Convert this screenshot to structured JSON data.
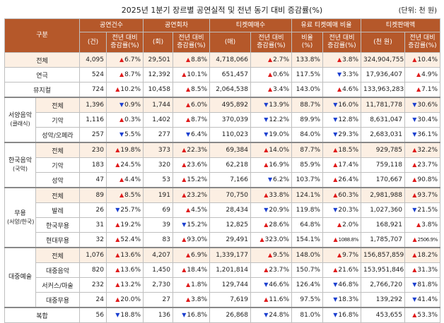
{
  "title": "2025년 1분기 장르별 공연실적 및 전년 동기 대비 증감률(%)",
  "unit": "(단위: 천 원)",
  "header": {
    "category": "구분",
    "groups": [
      "공연건수",
      "공연회차",
      "티켓예매수",
      "유료 티켓예매 비율",
      "티켓판매액"
    ],
    "subs": [
      "(건)",
      "전년 대비\n증감률(%)",
      "(회)",
      "전년 대비\n증감률(%)",
      "(매)",
      "전년 대비\n증감률(%)",
      "비율\n(%)",
      "전년 대비\n증감률(%)",
      "(천 원)",
      "전년 대비\n증감률(%)"
    ]
  },
  "groups": {
    "western": {
      "name": "서양음악",
      "sub": "(클래식)"
    },
    "korean": {
      "name": "한국음악",
      "sub": "(국악)"
    },
    "dance": {
      "name": "무용",
      "sub": "(서양/한국)"
    },
    "popular": {
      "name": "대중예술",
      "sub": ""
    }
  },
  "rows": [
    {
      "label": "전체",
      "v": [
        "4,095",
        "6.7%",
        "29,501",
        "8.8%",
        "4,718,066",
        "2.7%",
        "133.8%",
        "3.8%",
        "324,904,755",
        "10.4%"
      ],
      "d": [
        "up",
        "up",
        "up",
        "up",
        "up"
      ]
    },
    {
      "label": "연극",
      "v": [
        "524",
        "8.7%",
        "12,392",
        "10.1%",
        "651,457",
        "0.6%",
        "117.5%",
        "3.3%",
        "17,936,407",
        "4.9%"
      ],
      "d": [
        "up",
        "up",
        "up",
        "down",
        "up"
      ]
    },
    {
      "label": "뮤지컬",
      "v": [
        "724",
        "10.2%",
        "10,458",
        "8.5%",
        "2,064,538",
        "3.4%",
        "143.0%",
        "4.6%",
        "133,963,283",
        "7.1%"
      ],
      "d": [
        "up",
        "up",
        "up",
        "up",
        "up"
      ]
    },
    {
      "label": "전체",
      "v": [
        "1,396",
        "0.9%",
        "1,744",
        "6.0%",
        "495,892",
        "13.9%",
        "88.7%",
        "16.0%",
        "11,781,778",
        "30.6%"
      ],
      "d": [
        "down",
        "up",
        "down",
        "down",
        "down"
      ]
    },
    {
      "label": "기악",
      "v": [
        "1,116",
        "0.3%",
        "1,402",
        "8.7%",
        "370,039",
        "12.2%",
        "89.9%",
        "12.8%",
        "8,631,047",
        "30.4%"
      ],
      "d": [
        "up",
        "up",
        "down",
        "down",
        "down"
      ]
    },
    {
      "label": "성악/오페라",
      "v": [
        "257",
        "5.5%",
        "277",
        "6.4%",
        "110,023",
        "19.0%",
        "84.0%",
        "29.3%",
        "2,683,031",
        "36.1%"
      ],
      "d": [
        "down",
        "down",
        "down",
        "down",
        "down"
      ]
    },
    {
      "label": "전체",
      "v": [
        "230",
        "19.8%",
        "373",
        "22.3%",
        "69,384",
        "14.0%",
        "87.7%",
        "18.5%",
        "929,785",
        "32.2%"
      ],
      "d": [
        "up",
        "up",
        "up",
        "up",
        "up"
      ]
    },
    {
      "label": "기악",
      "v": [
        "183",
        "24.5%",
        "320",
        "23.6%",
        "62,218",
        "16.9%",
        "85.9%",
        "17.4%",
        "759,118",
        "23.7%"
      ],
      "d": [
        "up",
        "up",
        "up",
        "up",
        "up"
      ]
    },
    {
      "label": "성악",
      "v": [
        "47",
        "4.4%",
        "53",
        "15.2%",
        "7,166",
        "6.2%",
        "103.7%",
        "26.4%",
        "170,667",
        "90.8%"
      ],
      "d": [
        "up",
        "up",
        "down",
        "up",
        "up"
      ]
    },
    {
      "label": "전체",
      "v": [
        "89",
        "8.5%",
        "191",
        "23.2%",
        "70,750",
        "33.8%",
        "124.1%",
        "60.3%",
        "2,981,988",
        "93.7%"
      ],
      "d": [
        "up",
        "up",
        "up",
        "up",
        "up"
      ]
    },
    {
      "label": "발레",
      "v": [
        "26",
        "25.7%",
        "69",
        "4.5%",
        "28,434",
        "20.9%",
        "119.8%",
        "20.3%",
        "1,027,360",
        "21.5%"
      ],
      "d": [
        "down",
        "up",
        "down",
        "down",
        "down"
      ]
    },
    {
      "label": "한국무용",
      "v": [
        "31",
        "19.2%",
        "39",
        "15.2%",
        "12,825",
        "28.6%",
        "64.8%",
        "2.0%",
        "168,921",
        "3.8%"
      ],
      "d": [
        "up",
        "down",
        "up",
        "up",
        "up"
      ]
    },
    {
      "label": "현대무용",
      "v": [
        "32",
        "52.4%",
        "83",
        "93.0%",
        "29,491",
        "323.0%",
        "154.1%",
        "1088.8%",
        "1,785,707",
        "2506.9%"
      ],
      "d": [
        "up",
        "up",
        "up",
        "up",
        "up"
      ]
    },
    {
      "label": "전체",
      "v": [
        "1,076",
        "13.6%",
        "4,207",
        "6.9%",
        "1,339,177",
        "9.5%",
        "148.0%",
        "9.7%",
        "156,857,859",
        "18.2%"
      ],
      "d": [
        "up",
        "up",
        "up",
        "up",
        "up"
      ]
    },
    {
      "label": "대중음악",
      "v": [
        "820",
        "13.6%",
        "1,450",
        "18.4%",
        "1,201,814",
        "23.7%",
        "150.7%",
        "21.6%",
        "153,951,846",
        "31.3%"
      ],
      "d": [
        "up",
        "up",
        "up",
        "up",
        "up"
      ]
    },
    {
      "label": "서커스/마술",
      "v": [
        "232",
        "13.2%",
        "2,730",
        "1.8%",
        "129,744",
        "46.6%",
        "126.4%",
        "46.8%",
        "2,766,720",
        "81.8%"
      ],
      "d": [
        "up",
        "up",
        "down",
        "down",
        "down"
      ]
    },
    {
      "label": "대중무용",
      "v": [
        "24",
        "20.0%",
        "27",
        "3.8%",
        "7,619",
        "11.6%",
        "97.5%",
        "18.3%",
        "139,292",
        "41.4%"
      ],
      "d": [
        "up",
        "up",
        "up",
        "down",
        "down"
      ]
    },
    {
      "label": "복합",
      "v": [
        "56",
        "18.8%",
        "136",
        "16.8%",
        "26,868",
        "24.8%",
        "81.0%",
        "16.8%",
        "453,655",
        "53.3%"
      ],
      "d": [
        "down",
        "down",
        "down",
        "down",
        "up"
      ]
    }
  ]
}
